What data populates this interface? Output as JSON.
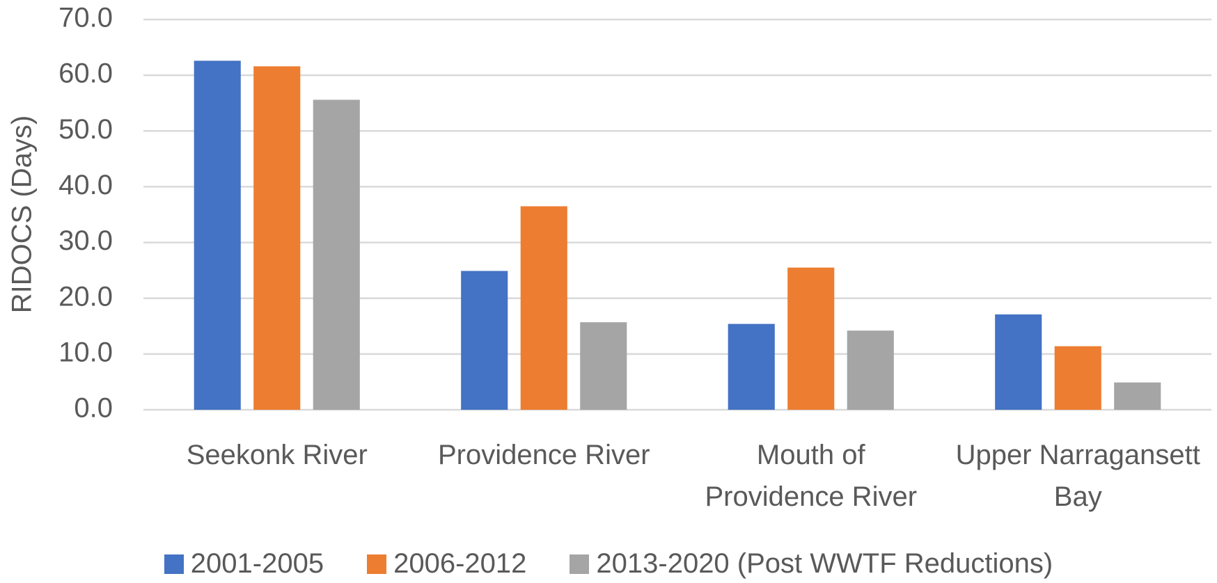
{
  "chart_data": {
    "type": "bar",
    "y_label": "RIDOCS (Days)",
    "categories": [
      "Seekonk River",
      "Providence River",
      "Mouth of Providence River",
      "Upper Narragansett Bay"
    ],
    "series": [
      {
        "name": "2001-2005",
        "color": "#4472c4",
        "values": [
          62.6,
          24.9,
          15.4,
          17.1
        ]
      },
      {
        "name": "2006-2012",
        "color": "#ed7d31",
        "values": [
          61.6,
          36.5,
          25.5,
          11.4
        ]
      },
      {
        "name": "2013-2020 (Post WWTF Reductions)",
        "color": "#a5a5a5",
        "values": [
          55.6,
          15.7,
          14.2,
          4.9
        ]
      }
    ],
    "ylim": [
      0,
      70
    ],
    "yticks": [
      {
        "value": 0,
        "label": "0.0"
      },
      {
        "value": 10,
        "label": "10.0"
      },
      {
        "value": 20,
        "label": "20.0"
      },
      {
        "value": 30,
        "label": "30.0"
      },
      {
        "value": 40,
        "label": "40.0"
      },
      {
        "value": 50,
        "label": "50.0"
      },
      {
        "value": 60,
        "label": "60.0"
      },
      {
        "value": 70,
        "label": "70.0"
      }
    ],
    "grid": true,
    "legend": "bottom"
  }
}
